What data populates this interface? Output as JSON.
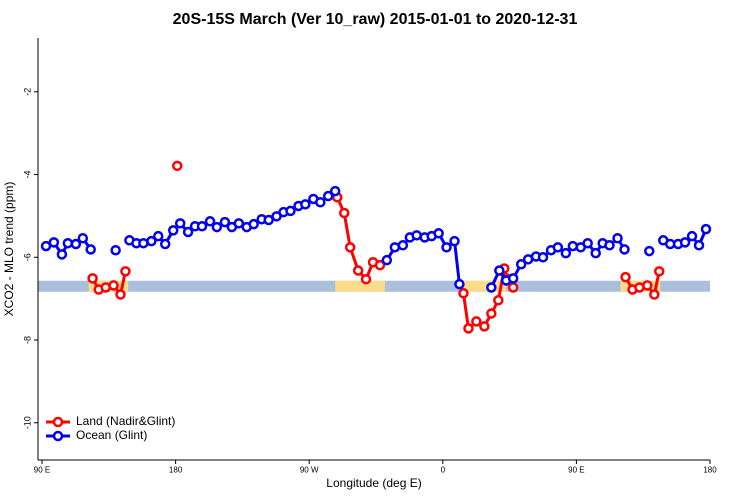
{
  "chart_data": {
    "type": "line",
    "title": "20S-15S March (Ver 10_raw)   2015-01-01 to 2020-12-31",
    "xlabel": "Longitude (deg E)",
    "ylabel": "XCO2 - MLO trend (ppm)",
    "xlim": [
      87.3,
      540
    ],
    "ylim": [
      -10.9,
      -0.7
    ],
    "xticks": [
      {
        "value": 90,
        "label": "90 E"
      },
      180,
      {
        "value": 270,
        "label": "90 W"
      },
      {
        "value": 360,
        "label": "0"
      },
      {
        "value": 450,
        "label": "90 E"
      },
      {
        "value": 540,
        "label": "180"
      }
    ],
    "yticks": [
      -10,
      -8,
      -6,
      -4,
      -2
    ],
    "legend": "bottom-left",
    "band": {
      "y": -6.7,
      "color": "#a9bfdc",
      "land_color": "#fbdc8a",
      "land_ranges": [
        [
          121.5,
          148
        ],
        [
          287.5,
          321
        ],
        [
          371,
          402.7
        ],
        [
          479.7,
          506.5
        ]
      ]
    },
    "series": [
      {
        "name": "Land (Nadir&Glint)",
        "color": "#ff0000",
        "x": [
          124.1,
          128.2,
          132.9,
          138.2,
          142.9,
          146.2,
          null,
          181.1,
          null,
          288.9,
          293.6,
          297.6,
          303.0,
          308.3,
          313.0,
          317.7,
          null,
          373.9,
          377.3,
          382.6,
          388.0,
          392.7,
          397.4,
          401.4,
          402.7,
          407.4,
          null,
          483.1,
          487.8,
          492.5,
          497.8,
          502.5,
          505.8
        ],
        "values": [
          -6.51,
          -6.78,
          -6.73,
          -6.68,
          -6.9,
          -6.34,
          null,
          -3.79,
          null,
          -4.55,
          -4.93,
          -5.76,
          -6.32,
          -6.53,
          -6.12,
          -6.19,
          null,
          -6.87,
          -7.72,
          -7.55,
          -7.67,
          -7.36,
          -7.04,
          -6.27,
          -6.51,
          -6.73,
          null,
          -6.48,
          -6.78,
          -6.73,
          -6.68,
          -6.9,
          -6.34
        ]
      },
      {
        "name": "Ocean (Glint)",
        "color": "#0000ee",
        "x": [
          92.7,
          98.0,
          103.4,
          107.4,
          112.8,
          117.5,
          122.8,
          null,
          139.6,
          null,
          148.9,
          153.6,
          158.3,
          163.7,
          168.3,
          173.0,
          178.4,
          183.1,
          188.4,
          193.1,
          197.8,
          203.2,
          207.8,
          213.2,
          217.9,
          222.6,
          227.9,
          232.6,
          238.0,
          242.7,
          248.0,
          252.7,
          257.4,
          262.8,
          267.4,
          272.8,
          277.5,
          282.8,
          287.5,
          null,
          322.3,
          327.7,
          333.1,
          337.8,
          342.4,
          347.8,
          352.5,
          357.2,
          362.5,
          367.9,
          371.2,
          null,
          392.7,
          398.1,
          402.7,
          407.4,
          412.8,
          417.5,
          422.8,
          427.5,
          432.9,
          437.5,
          442.9,
          447.6,
          452.9,
          457.6,
          463.0,
          467.7,
          472.3,
          477.7,
          482.4,
          null,
          499.1,
          null,
          508.5,
          513.2,
          518.5,
          523.2,
          527.9,
          532.6,
          537.3
        ],
        "values": [
          -5.73,
          -5.64,
          -5.93,
          -5.66,
          -5.68,
          -5.54,
          -5.81,
          null,
          -5.83,
          null,
          -5.59,
          -5.66,
          -5.66,
          -5.61,
          -5.49,
          -5.68,
          -5.35,
          -5.18,
          -5.39,
          -5.25,
          -5.25,
          -5.13,
          -5.27,
          -5.15,
          -5.27,
          -5.18,
          -5.27,
          -5.2,
          -5.08,
          -5.1,
          -5.01,
          -4.91,
          -4.88,
          -4.76,
          -4.72,
          -4.59,
          -4.67,
          -4.52,
          -4.4,
          null,
          -6.07,
          -5.76,
          -5.71,
          -5.52,
          -5.47,
          -5.52,
          -5.49,
          -5.42,
          -5.76,
          -5.61,
          -6.65,
          null,
          -6.73,
          -6.32,
          -6.56,
          -6.51,
          -6.17,
          -6.05,
          -5.98,
          -6.0,
          -5.83,
          -5.76,
          -5.9,
          -5.73,
          -5.76,
          -5.66,
          -5.9,
          -5.66,
          -5.71,
          -5.54,
          -5.81,
          null,
          -5.85,
          null,
          -5.59,
          -5.68,
          -5.68,
          -5.64,
          -5.49,
          -5.71,
          -5.32
        ]
      }
    ]
  }
}
